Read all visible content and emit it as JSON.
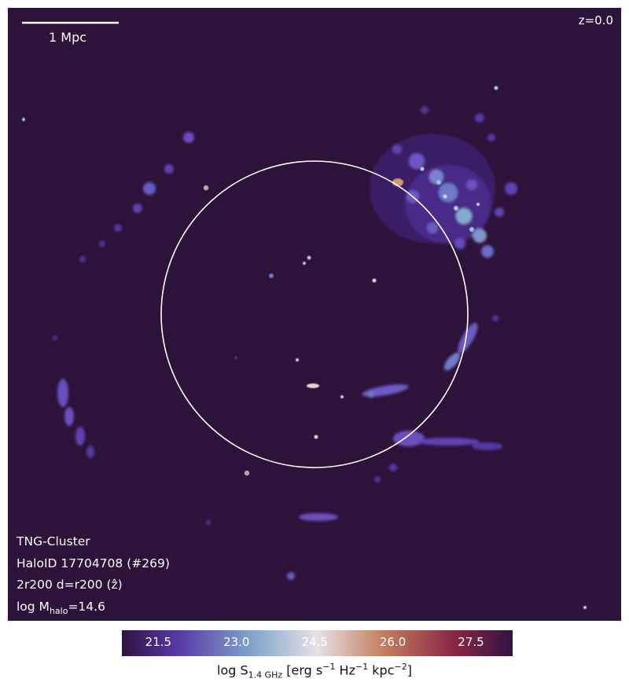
{
  "panel": {
    "redshift": "z=0.0",
    "scalebar_label": "1 Mpc",
    "info_lines": [
      "TNG-Cluster",
      "HaloID 17704708 (#269)"
    ],
    "projection_prefix": "2r200 d=r200 (",
    "projection_axis": "ẑ",
    "projection_suffix": ")",
    "mass_prefix": "log M",
    "mass_sub": "halo",
    "mass_value": "=14.6"
  },
  "colorbar": {
    "ticks": [
      "21.5",
      "23.0",
      "24.5",
      "26.0",
      "27.5"
    ],
    "tick_values": [
      21.5,
      23.0,
      24.5,
      26.0,
      27.5
    ],
    "range": [
      20.8,
      28.3
    ],
    "label_prefix": "log S",
    "label_sub": "1.4 GHz",
    "label_unit_1": " [erg s",
    "label_exp_1": "−1",
    "label_unit_2": " Hz",
    "label_exp_2": "−1",
    "label_unit_3": " kpc",
    "label_exp_3": "−2",
    "label_unit_4": "]",
    "cmap": "twilight_shifted",
    "colors": [
      "#2f1440",
      "#5a3ba8",
      "#7fa3c9",
      "#e6e1e6",
      "#c47e5c",
      "#8a2646",
      "#2f1440"
    ]
  },
  "colors": {
    "background": "#2d1239",
    "circle": "#ffffff"
  }
}
